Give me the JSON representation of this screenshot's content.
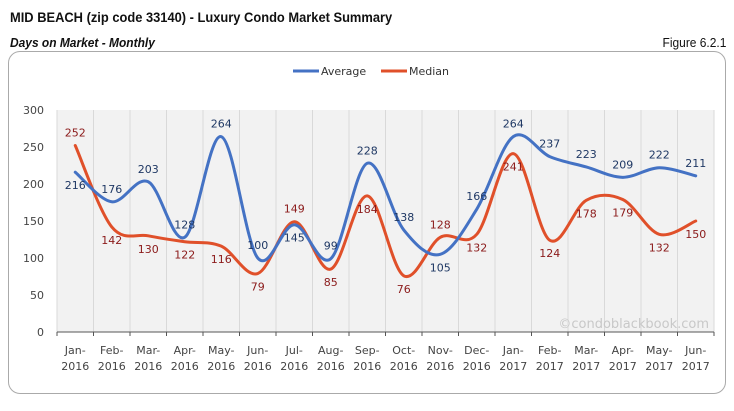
{
  "header": {
    "title": "MID BEACH (zip code 33140) - Luxury Condo Market Summary",
    "subtitle": "Days on Market - Monthly",
    "figure": "Figure 6.2.1"
  },
  "watermark": "©condoblackbook.com",
  "chart_data": {
    "type": "line",
    "categories": [
      "Jan-2016",
      "Feb-2016",
      "Mar-2016",
      "Apr-2016",
      "May-2016",
      "Jun-2016",
      "Jul-2016",
      "Aug-2016",
      "Sep-2016",
      "Oct-2016",
      "Nov-2016",
      "Dec-2016",
      "Jan-2017",
      "Feb-2017",
      "Mar-2017",
      "Apr-2017",
      "May-2017",
      "Jun-2017"
    ],
    "series": [
      {
        "name": "Average",
        "color": "#4472C4",
        "label_color": "#1F3864",
        "values": [
          216,
          176,
          203,
          128,
          264,
          100,
          145,
          99,
          228,
          138,
          105,
          166,
          264,
          237,
          223,
          209,
          222,
          211
        ]
      },
      {
        "name": "Median",
        "color": "#E0502A",
        "label_color": "#8B1A1A",
        "values": [
          252,
          142,
          130,
          122,
          116,
          79,
          149,
          85,
          184,
          76,
          128,
          132,
          241,
          124,
          178,
          179,
          132,
          150
        ]
      }
    ],
    "ylim": [
      0,
      300
    ],
    "yticks": [
      0,
      50,
      100,
      150,
      200,
      250,
      300
    ],
    "grid": "vertical",
    "legend": "top-center",
    "smooth": true
  }
}
